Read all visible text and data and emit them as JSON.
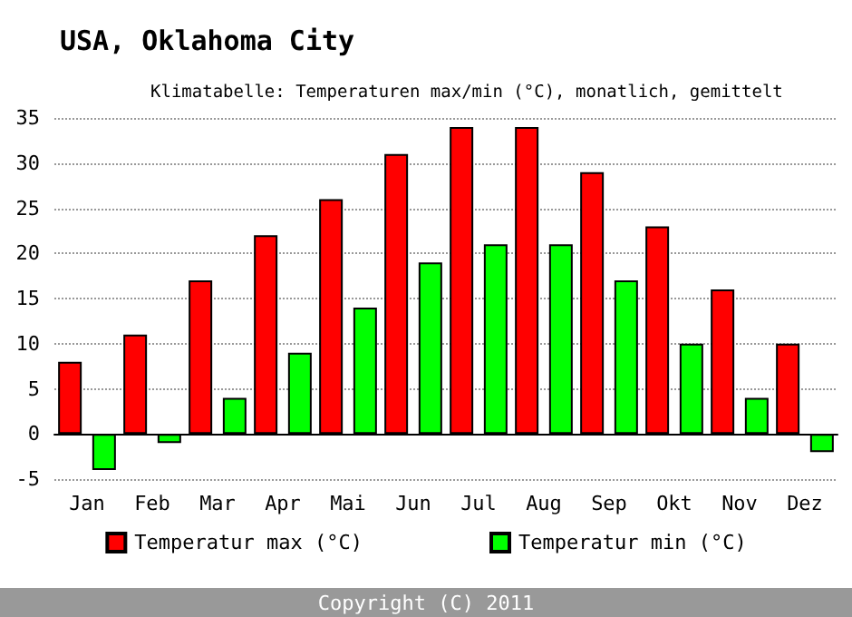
{
  "chart_data": {
    "type": "bar",
    "title": "USA, Oklahoma City",
    "subtitle": "Klimatabelle: Temperaturen max/min (°C), monatlich, gemittelt",
    "categories": [
      "Jan",
      "Feb",
      "Mar",
      "Apr",
      "Mai",
      "Jun",
      "Jul",
      "Aug",
      "Sep",
      "Okt",
      "Nov",
      "Dez"
    ],
    "series": [
      {
        "name": "Temperatur max (°C)",
        "color": "#ff0000",
        "values": [
          8,
          11,
          17,
          22,
          26,
          31,
          34,
          34,
          29,
          23,
          16,
          10
        ]
      },
      {
        "name": "Temperatur min (°C)",
        "color": "#00ff00",
        "values": [
          -4,
          -1,
          4,
          9,
          14,
          19,
          21,
          21,
          17,
          10,
          4,
          -2
        ]
      }
    ],
    "ylim": [
      -5,
      35
    ],
    "yticks": [
      -5,
      0,
      5,
      10,
      15,
      20,
      25,
      30,
      35
    ],
    "grid": "y",
    "legend": "bottom",
    "annotations": [
      "Copyright (C) 2011"
    ]
  }
}
